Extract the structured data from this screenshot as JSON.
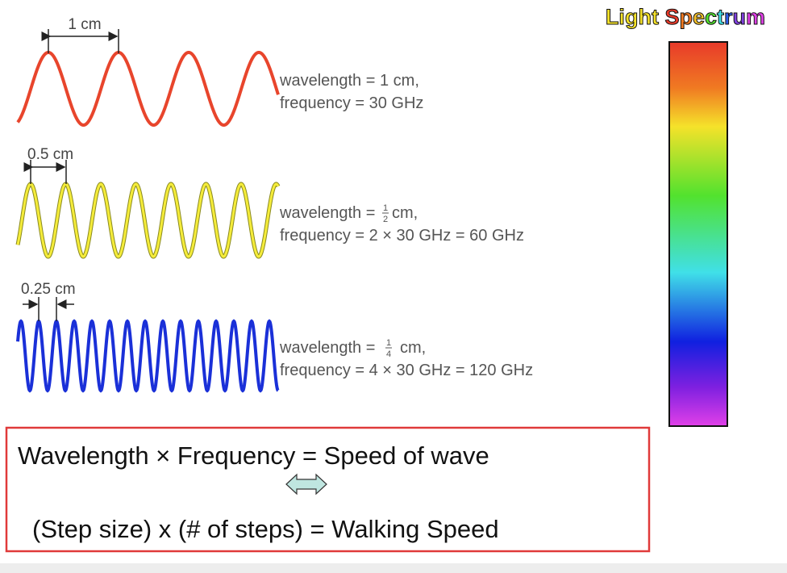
{
  "waves": [
    {
      "spacing": "1 cm",
      "wavelength": {
        "prefix": "wavelength =",
        "numerator": null,
        "denominator": null,
        "suffix": "1 cm,"
      },
      "frequency": "frequency = 30 GHz"
    },
    {
      "spacing": "0.5 cm",
      "wavelength": {
        "prefix": "wavelength =",
        "numerator": "1",
        "denominator": "2",
        "suffix": "cm,"
      },
      "frequency": "frequency = 2 × 30 GHz = 60 GHz"
    },
    {
      "spacing": "0.25 cm",
      "wavelength": {
        "prefix": "wavelength =",
        "numerator": "1",
        "denominator": "4",
        "suffix": "cm,"
      },
      "frequency": "frequency = 4 × 30 GHz = 120 GHz"
    }
  ],
  "spectrum": {
    "title": "Light Spectrum"
  },
  "formula": {
    "line1": "Wavelength  ×  Frequency = Speed of wave",
    "line2": "(Step size)  x (# of steps) = Walking Speed"
  }
}
